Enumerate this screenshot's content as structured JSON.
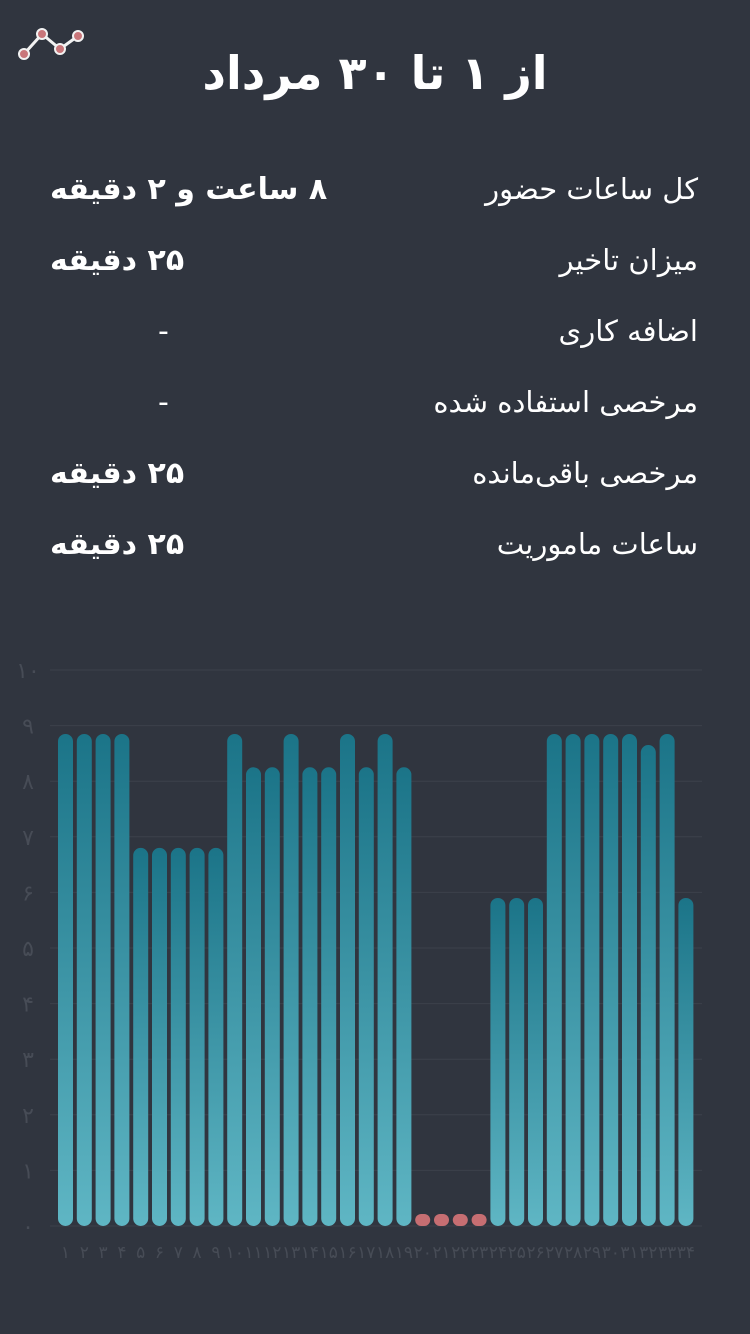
{
  "header": {
    "title": "از ۱ تا ۳۰ مرداد",
    "icon": "trend-line-icon"
  },
  "stats": [
    {
      "label": "کل ساعات حضور",
      "value": "۸ ساعت و ۲ دقیقه"
    },
    {
      "label": "میزان تاخیر",
      "value": "۲۵ دقیقه"
    },
    {
      "label": "اضافه کاری",
      "value": "-"
    },
    {
      "label": "مرخصی استفاده شده",
      "value": "-"
    },
    {
      "label": "مرخصی باقی‌مانده",
      "value": "۲۵ دقیقه"
    },
    {
      "label": "ساعات ماموریت",
      "value": "۲۵ دقیقه"
    }
  ],
  "colors": {
    "background": "#30353f",
    "bar_top": "#1b7488",
    "bar_bottom": "#5fb6c4",
    "absent": "#c66e72",
    "grid": "#3c414b",
    "tick": "#474c56"
  },
  "chart_data": {
    "type": "bar",
    "ylim": [
      0,
      10
    ],
    "y_ticks": [
      "۰",
      "۱",
      "۲",
      "۳",
      "۴",
      "۵",
      "۶",
      "۷",
      "۸",
      "۹",
      "۱۰"
    ],
    "categories": [
      "۱",
      "۲",
      "۳",
      "۴",
      "۵",
      "۶",
      "۷",
      "۸",
      "۹",
      "۱۰",
      "۱۱",
      "۱۲",
      "۱۳",
      "۱۴",
      "۱۵",
      "۱۶",
      "۱۷",
      "۱۸",
      "۱۹",
      "۲۰",
      "۲۱",
      "۲۲",
      "۲۳",
      "۲۴",
      "۲۵",
      "۲۶",
      "۲۷",
      "۲۸",
      "۲۹",
      "۳۰",
      "۳۱",
      "۳۲",
      "۳۳",
      "۳۴"
    ],
    "values": [
      8.85,
      8.85,
      8.85,
      8.85,
      6.8,
      6.8,
      6.8,
      6.8,
      6.8,
      8.85,
      8.25,
      8.25,
      8.85,
      8.25,
      8.25,
      8.85,
      8.25,
      8.85,
      8.25,
      0,
      0,
      0,
      0,
      5.9,
      5.9,
      5.9,
      8.85,
      8.85,
      8.85,
      8.85,
      8.85,
      8.65,
      8.85,
      5.9
    ],
    "grid": true,
    "legend": "none"
  }
}
